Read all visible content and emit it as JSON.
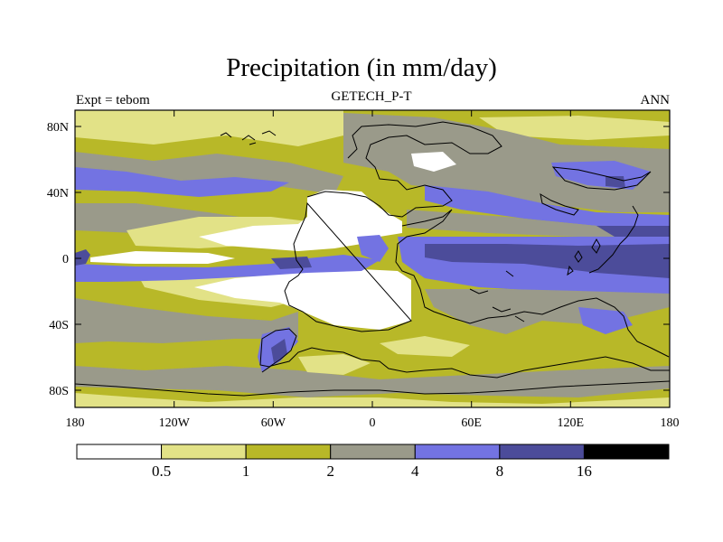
{
  "title": "Precipitation (in mm/day)",
  "left_string": "Expt = tebom",
  "center_string": "GETECH_P-T",
  "right_string": "ANN",
  "lat_labels": [
    "80N",
    "40N",
    "0",
    "40S",
    "80S"
  ],
  "lon_labels": [
    "180",
    "120W",
    "60W",
    "0",
    "60E",
    "120E",
    "180"
  ],
  "colorbar": {
    "labels": [
      "0.5",
      "1",
      "2",
      "4",
      "8",
      "16"
    ],
    "colors": [
      "#ffffff",
      "#e2e287",
      "#b8b828",
      "#9a9a8a",
      "#7373e2",
      "#4c4c9a",
      "#000000"
    ]
  },
  "palette": {
    "white": "#ffffff",
    "light_yellow": "#e2e287",
    "olive": "#b8b828",
    "gray": "#9a9a8a",
    "blue": "#7373e2",
    "dark_blue": "#4c4c9a"
  }
}
